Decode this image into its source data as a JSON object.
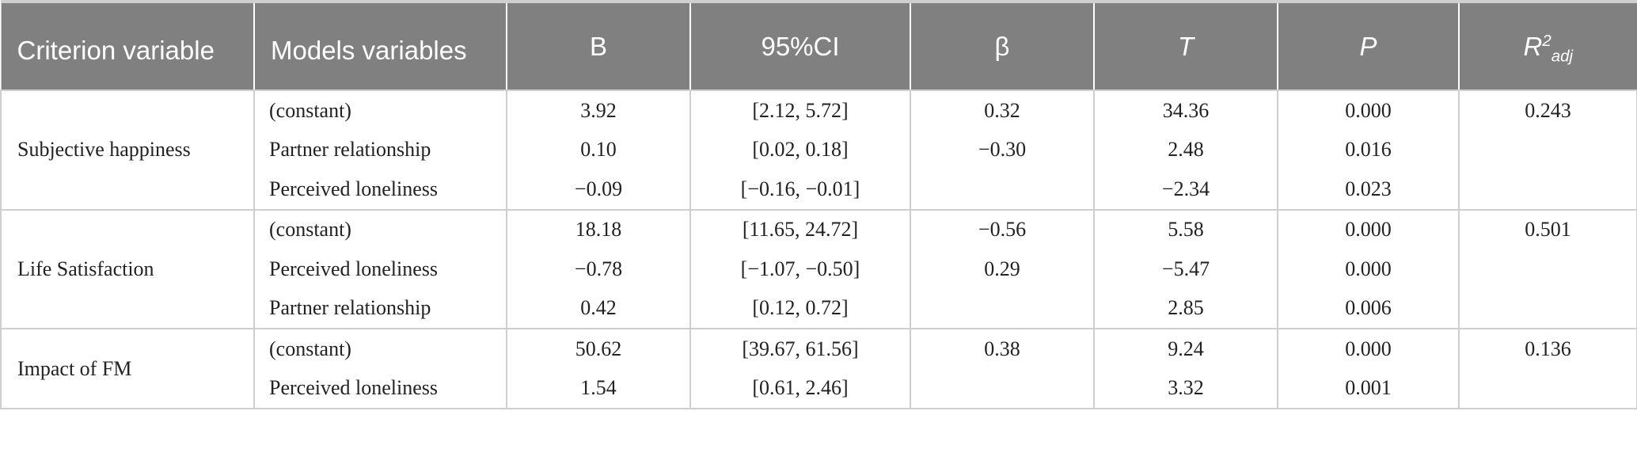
{
  "table": {
    "headers": {
      "criterion": "Criterion variable",
      "models": "Models variables",
      "b": "B",
      "ci": "95%CI",
      "beta": "β",
      "t": "T",
      "p": "P",
      "r2_base": "R",
      "r2_sup": "2",
      "r2_sub": "adj"
    },
    "groups": [
      {
        "criterion": "Subjective happiness",
        "rows": [
          {
            "model": "(constant)",
            "b": "3.92",
            "ci": "[2.12, 5.72]",
            "beta": "0.32",
            "t": "34.36",
            "p": "0.000",
            "r2": "0.243"
          },
          {
            "model": "Partner relationship",
            "b": "0.10",
            "ci": "[0.02, 0.18]",
            "beta": "−0.30",
            "t": "2.48",
            "p": "0.016",
            "r2": ""
          },
          {
            "model": "Perceived loneliness",
            "b": "−0.09",
            "ci": "[−0.16, −0.01]",
            "beta": "",
            "t": "−2.34",
            "p": "0.023",
            "r2": ""
          }
        ]
      },
      {
        "criterion": "Life Satisfaction",
        "rows": [
          {
            "model": "(constant)",
            "b": "18.18",
            "ci": "[11.65, 24.72]",
            "beta": "−0.56",
            "t": "5.58",
            "p": "0.000",
            "r2": "0.501"
          },
          {
            "model": "Perceived loneliness",
            "b": "−0.78",
            "ci": "[−1.07, −0.50]",
            "beta": "0.29",
            "t": "−5.47",
            "p": "0.000",
            "r2": ""
          },
          {
            "model": "Partner relationship",
            "b": "0.42",
            "ci": "[0.12, 0.72]",
            "beta": "",
            "t": "2.85",
            "p": "0.006",
            "r2": ""
          }
        ]
      },
      {
        "criterion": "Impact of FM",
        "rows": [
          {
            "model": "(constant)",
            "b": "50.62",
            "ci": "[39.67, 61.56]",
            "beta": "0.38",
            "t": "9.24",
            "p": "0.000",
            "r2": "0.136"
          },
          {
            "model": "Perceived loneliness",
            "b": "1.54",
            "ci": "[0.61, 2.46]",
            "beta": "",
            "t": "3.32",
            "p": "0.001",
            "r2": ""
          }
        ]
      }
    ]
  }
}
